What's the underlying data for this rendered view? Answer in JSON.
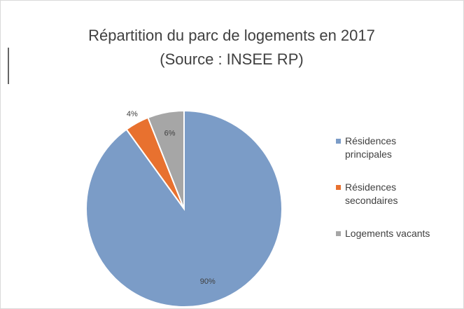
{
  "chart_data": {
    "type": "pie",
    "title": "Répartition du parc de logements en 2017",
    "subtitle": "(Source : INSEE RP)",
    "categories": [
      "Résidences principales",
      "Résidences secondaires",
      "Logements vacants"
    ],
    "values": [
      90,
      4,
      6
    ],
    "value_labels": [
      "90%",
      "4%",
      "6%"
    ],
    "colors": [
      "#7b9cc7",
      "#e8712f",
      "#a6a6a6"
    ],
    "legend": "right"
  }
}
